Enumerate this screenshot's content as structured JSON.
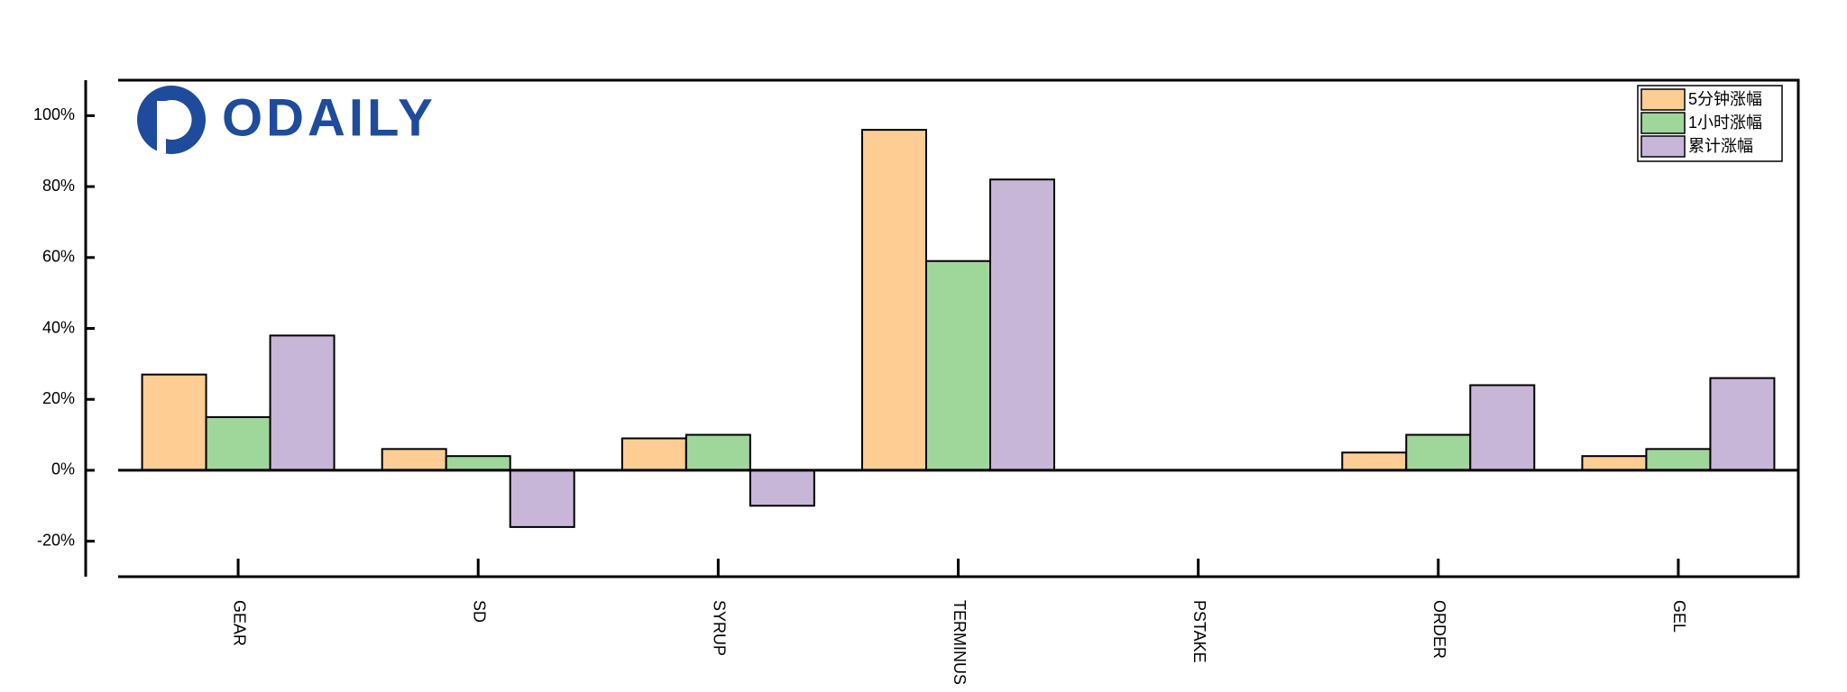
{
  "chart_data": {
    "type": "bar",
    "logo": "ODAILY",
    "categories": [
      "GEAR",
      "SD",
      "SYRUP",
      "TERMINUS",
      "PSTAKE",
      "ORDER",
      "GEL"
    ],
    "series": [
      {
        "name": "5分钟涨幅",
        "color": "#fdcd94",
        "values": [
          27,
          6,
          9,
          96,
          0,
          5,
          4
        ]
      },
      {
        "name": "1小时涨幅",
        "color": "#9fd79a",
        "values": [
          15,
          4,
          10,
          59,
          0,
          10,
          6
        ]
      },
      {
        "name": "累计涨幅",
        "color": "#c7b6d8",
        "values": [
          38,
          -16,
          -10,
          82,
          0,
          24,
          26
        ]
      }
    ],
    "ylim": [
      -30,
      110
    ],
    "yticks": [
      {
        "value": -20,
        "label": "-20%"
      },
      {
        "value": 0,
        "label": "0%"
      },
      {
        "value": 20,
        "label": "20%"
      },
      {
        "value": 40,
        "label": "40%"
      },
      {
        "value": 60,
        "label": "60%"
      },
      {
        "value": 80,
        "label": "80%"
      },
      {
        "value": 100,
        "label": "100%"
      }
    ],
    "legend": "upper right"
  }
}
